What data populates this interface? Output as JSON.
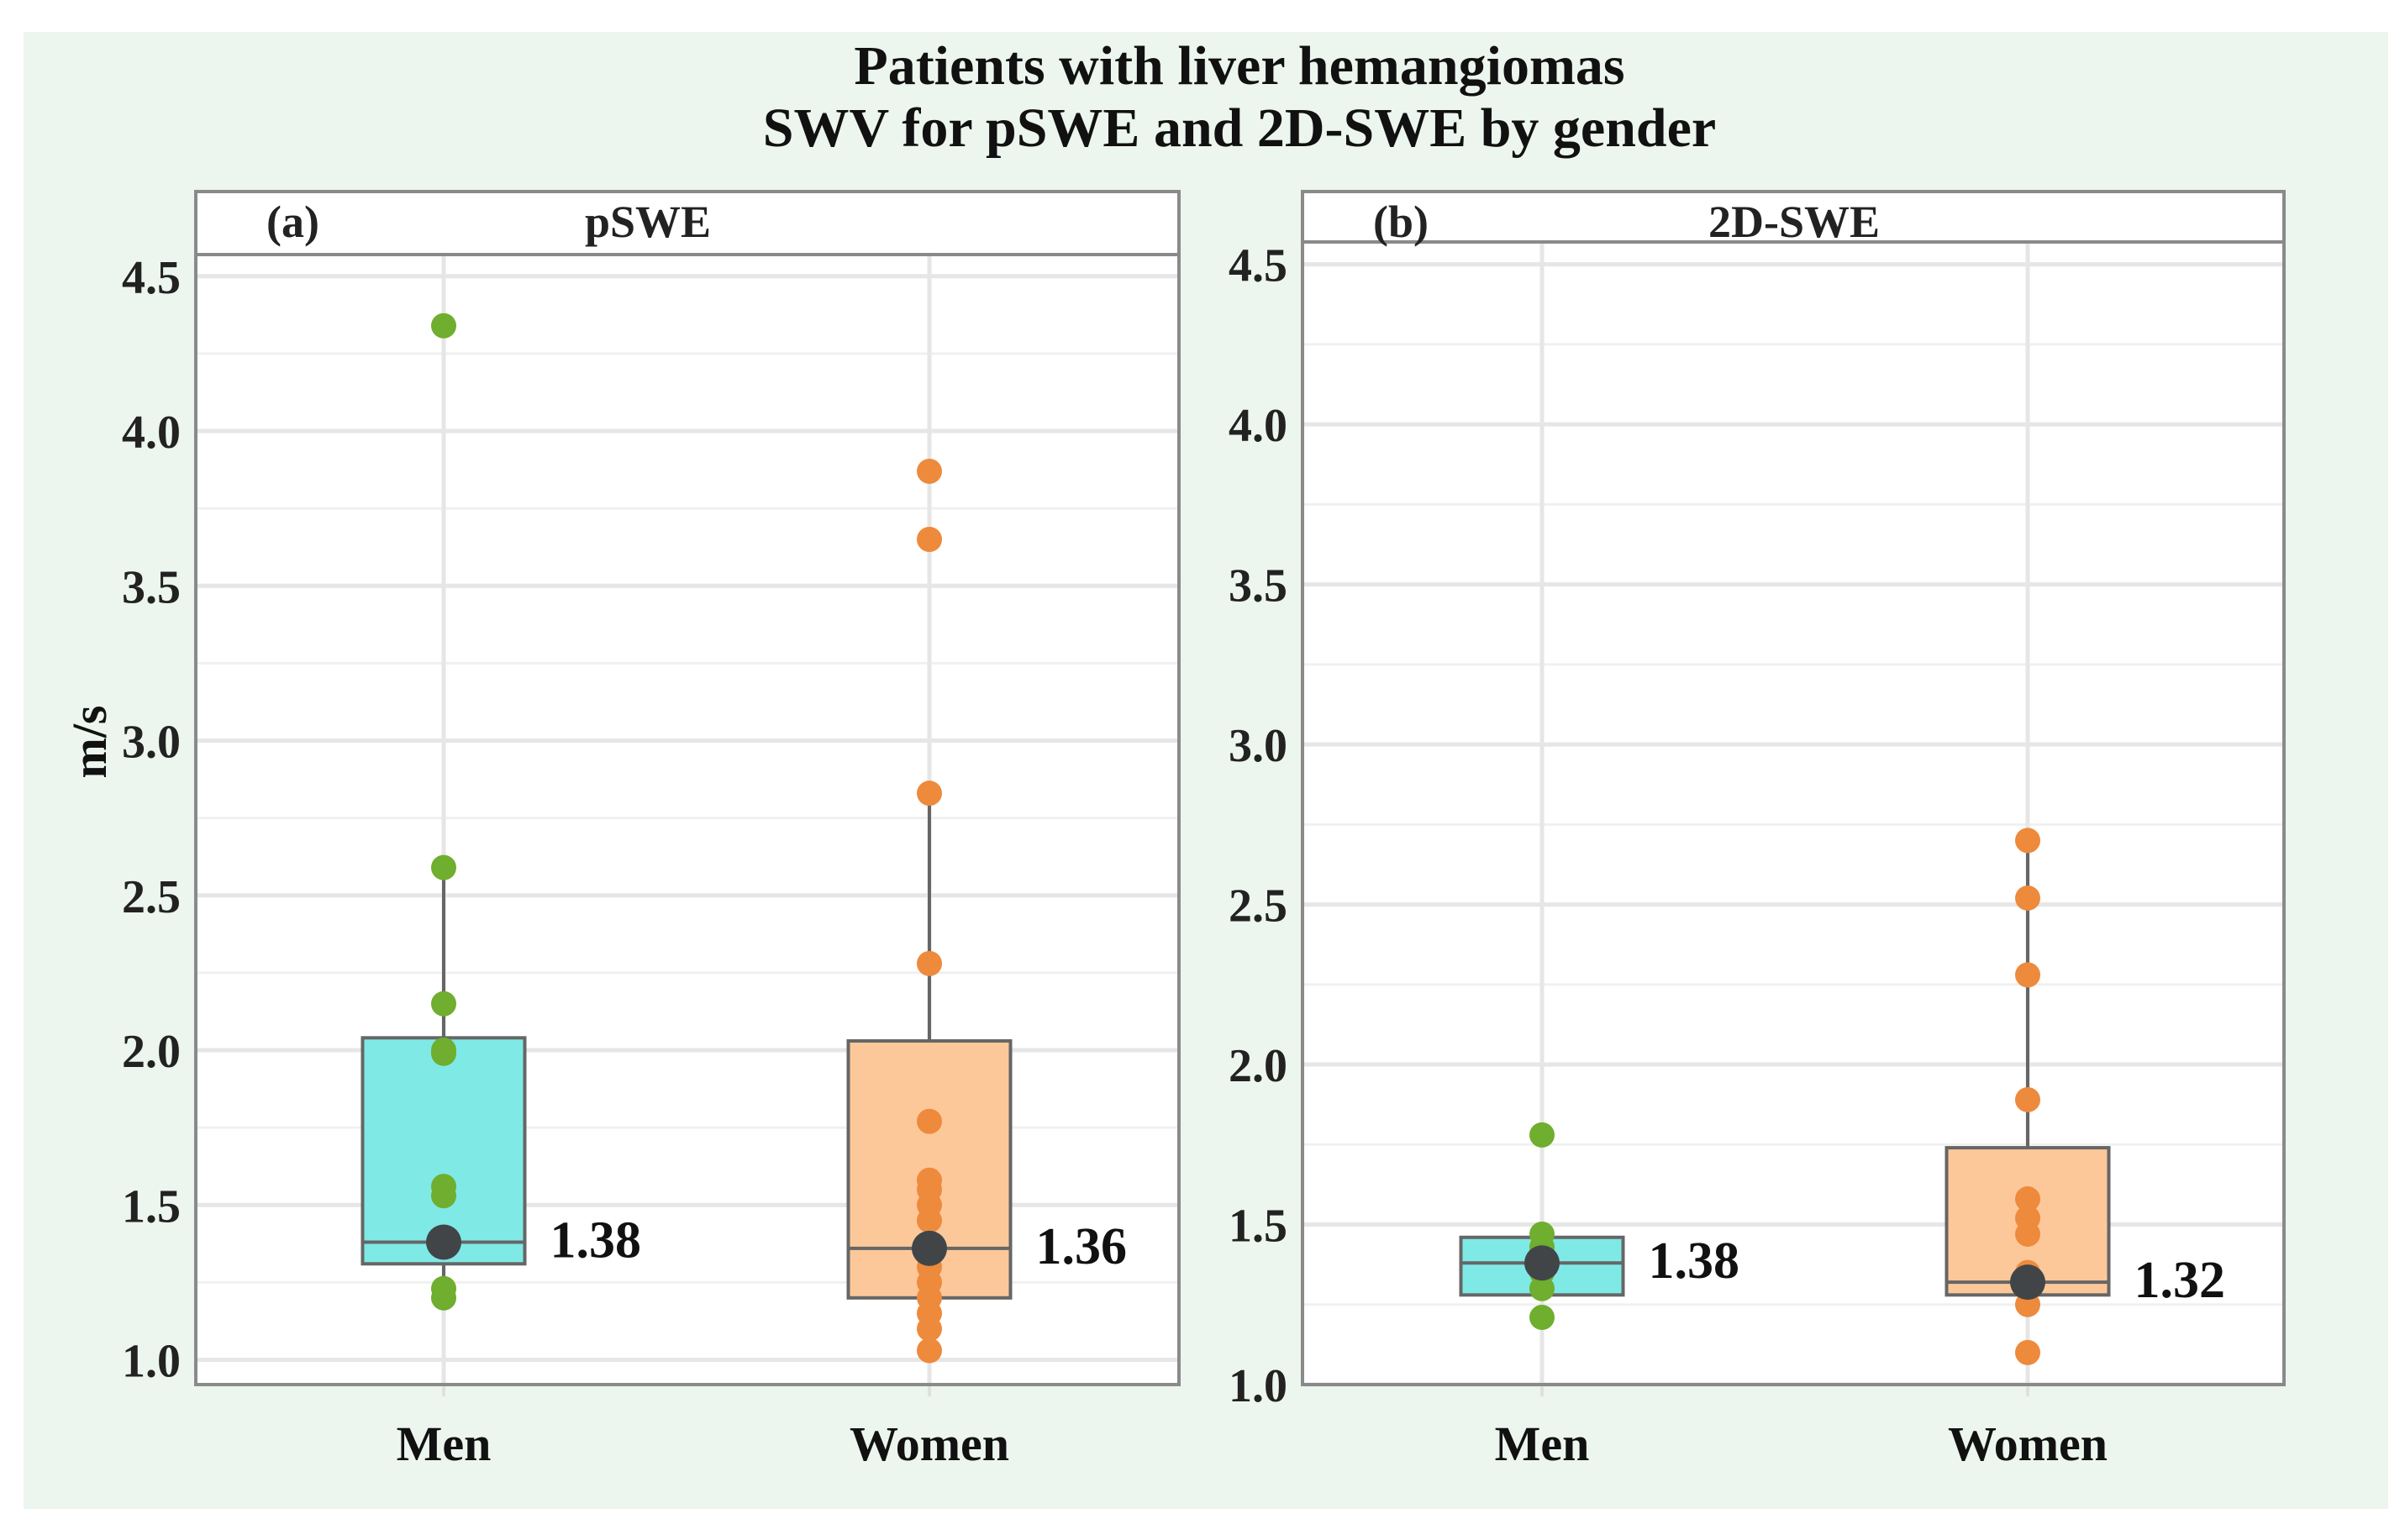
{
  "title_line1": "Patients with liver hemangiomas",
  "title_line2": "SWV for pSWE and 2D-SWE by gender",
  "y_axis_label": "m/s",
  "colors": {
    "men_box": "#7fe9e6",
    "women_box": "#fcc89a",
    "men_point": "#6fae2e",
    "women_point": "#ee8a3c",
    "median_point": "#414548",
    "box_stroke": "#666666",
    "frame": "#8a8a8a",
    "grid": "#e6e6e6",
    "figure_bg": "#ecf5ee",
    "panel_bg": "#ffffff"
  },
  "chart_data": [
    {
      "type": "box",
      "panel_tag": "(a)",
      "title": "pSWE",
      "ylabel": "m/s",
      "ylim": [
        0.92,
        4.57
      ],
      "yticks": [
        1.0,
        1.5,
        2.0,
        2.5,
        3.0,
        3.5,
        4.0,
        4.5
      ],
      "ytick_labels": [
        "1.0",
        "1.5",
        "2.0",
        "2.5",
        "3.0",
        "3.5",
        "4.0",
        "4.5"
      ],
      "categories": [
        "Men",
        "Women"
      ],
      "series": [
        {
          "name": "Men",
          "q1": 1.31,
          "median": 1.38,
          "q3": 2.04,
          "whisker_low": 1.2,
          "whisker_high": 2.59,
          "median_label": "1.38",
          "points": [
            1.2,
            1.23,
            1.38,
            1.53,
            1.56,
            1.99,
            2.0,
            2.15,
            2.59,
            4.34
          ]
        },
        {
          "name": "Women",
          "q1": 1.2,
          "median": 1.36,
          "q3": 2.03,
          "whisker_low": 1.03,
          "whisker_high": 2.83,
          "median_label": "1.36",
          "points": [
            1.03,
            1.1,
            1.15,
            1.2,
            1.25,
            1.3,
            1.36,
            1.45,
            1.5,
            1.55,
            1.58,
            1.77,
            2.28,
            2.83,
            3.65,
            3.87
          ]
        }
      ]
    },
    {
      "type": "box",
      "panel_tag": "(b)",
      "title": "2D-SWE",
      "ylabel": "",
      "ylim": [
        1.0,
        4.57
      ],
      "yticks": [
        1.0,
        1.5,
        2.0,
        2.5,
        3.0,
        3.5,
        4.0,
        4.5
      ],
      "ytick_labels": [
        "1.0",
        "1.5",
        "2.0",
        "2.5",
        "3.0",
        "3.5",
        "4.0",
        "4.5"
      ],
      "categories": [
        "Men",
        "Women"
      ],
      "series": [
        {
          "name": "Men",
          "q1": 1.28,
          "median": 1.38,
          "q3": 1.46,
          "whisker_low": 1.28,
          "whisker_high": 1.46,
          "median_label": "1.38",
          "points": [
            1.21,
            1.3,
            1.35,
            1.38,
            1.43,
            1.47,
            1.78
          ]
        },
        {
          "name": "Women",
          "q1": 1.28,
          "median": 1.32,
          "q3": 1.74,
          "whisker_low": 1.28,
          "whisker_high": 2.7,
          "median_label": "1.32",
          "points": [
            1.1,
            1.25,
            1.32,
            1.35,
            1.47,
            1.52,
            1.58,
            1.89,
            2.28,
            2.52,
            2.7
          ]
        }
      ]
    }
  ]
}
